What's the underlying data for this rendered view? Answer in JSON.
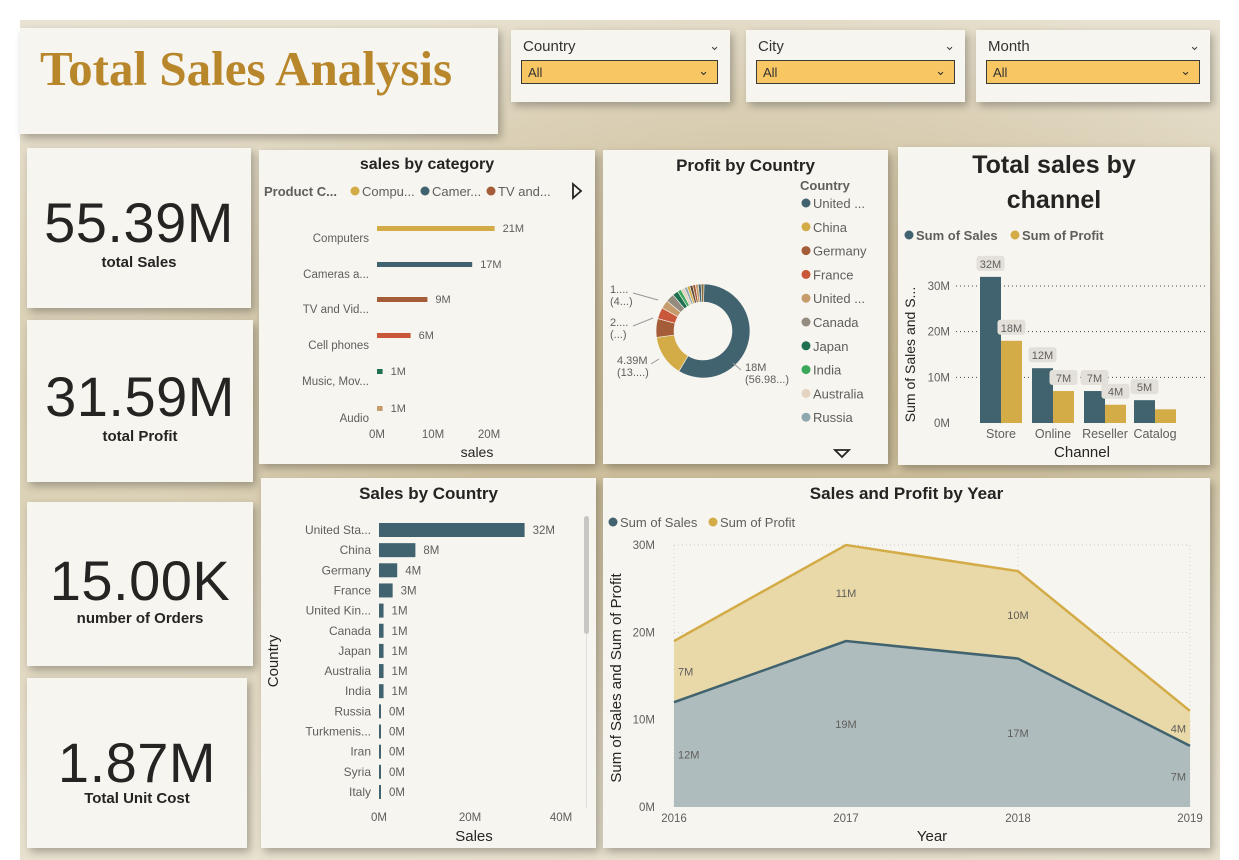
{
  "header": {
    "title": "Total Sales Analysis"
  },
  "slicers": [
    {
      "label": "Country",
      "value": "All"
    },
    {
      "label": "City",
      "value": "All"
    },
    {
      "label": "Month",
      "value": "All"
    }
  ],
  "kpis": [
    {
      "value": "55.39M",
      "caption": "total Sales"
    },
    {
      "value": "31.59M",
      "caption": "total Profit"
    },
    {
      "value": "15.00K",
      "caption": "number of Orders"
    },
    {
      "value": "1.87M",
      "caption": "Total Unit Cost"
    }
  ],
  "colors": {
    "teal": "#41636f",
    "gold": "#d3ab47",
    "brown": "#a55c39",
    "rust": "#c9573a",
    "tan": "#c69c6d",
    "green": "#1f6f51",
    "accent_title": "#b8862b",
    "slicer_fill": "#f8c662"
  },
  "icons": {
    "expand": "play-right-icon",
    "scroll_down": "triangle-down-icon",
    "dropdown": "chevron-down-icon"
  },
  "chart_data": [
    {
      "id": "category",
      "type": "bar",
      "title": "sales by category",
      "legend_title": "Product C...",
      "legend": [
        {
          "name": "Compu...",
          "color": "#d3ab47"
        },
        {
          "name": "Camer...",
          "color": "#41636f"
        },
        {
          "name": "TV and...",
          "color": "#a55c39"
        }
      ],
      "categories": [
        "Computers",
        "Cameras a...",
        "TV and Vid...",
        "Cell phones",
        "Music, Mov...",
        "Audio"
      ],
      "values": [
        21,
        17,
        9,
        6,
        1,
        1
      ],
      "labels": [
        "21M",
        "17M",
        "9M",
        "6M",
        "1M",
        "1M"
      ],
      "colors": [
        "#d3ab47",
        "#41636f",
        "#a55c39",
        "#c9573a",
        "#1f6f51",
        "#c69c6d"
      ],
      "xlabel": "sales",
      "xticks": [
        "0M",
        "10M",
        "20M"
      ],
      "xlim": [
        0,
        25
      ]
    },
    {
      "id": "country_pie",
      "type": "pie",
      "title": "Profit by Country",
      "legend_title": "Country",
      "legend": [
        {
          "name": "United ...",
          "color": "#41636f"
        },
        {
          "name": "China",
          "color": "#d3ab47"
        },
        {
          "name": "Germany",
          "color": "#a55c39"
        },
        {
          "name": "France",
          "color": "#c9573a"
        },
        {
          "name": "United ...",
          "color": "#c69c6d"
        },
        {
          "name": "Canada",
          "color": "#948c7f"
        },
        {
          "name": "Japan",
          "color": "#1f6f51"
        },
        {
          "name": "India",
          "color": "#3aa85a"
        },
        {
          "name": "Australia",
          "color": "#e4d3c1"
        },
        {
          "name": "Russia",
          "color": "#8fa8b0"
        }
      ],
      "slices": [
        {
          "value": 18,
          "color": "#41636f",
          "label": "18M",
          "sublabel": "(56.98...)"
        },
        {
          "value": 4.39,
          "color": "#d3ab47",
          "label": "4.39M",
          "sublabel": "(13....)"
        },
        {
          "value": 2.0,
          "color": "#a55c39",
          "label": "2....",
          "sublabel": "(...)"
        },
        {
          "value": 1.2,
          "color": "#c9573a",
          "label": "1....",
          "sublabel": "(4...)"
        },
        {
          "value": 0.9,
          "color": "#c69c6d"
        },
        {
          "value": 0.9,
          "color": "#948c7f"
        },
        {
          "value": 0.6,
          "color": "#1f6f51"
        },
        {
          "value": 0.4,
          "color": "#3aa85a"
        },
        {
          "value": 0.4,
          "color": "#e4d3c1"
        },
        {
          "value": 0.3,
          "color": "#8fa8b0"
        },
        {
          "value": 0.3,
          "color": "#d3ab47"
        },
        {
          "value": 0.3,
          "color": "#5a4632"
        },
        {
          "value": 0.3,
          "color": "#a55c39"
        },
        {
          "value": 0.3,
          "color": "#c69c6d"
        },
        {
          "value": 0.3,
          "color": "#41636f"
        },
        {
          "value": 0.3,
          "color": "#8a6d3b"
        }
      ]
    },
    {
      "id": "channel",
      "type": "bar",
      "title": "Total sales by channel",
      "title_lines": [
        "Total sales by",
        "channel"
      ],
      "categories": [
        "Store",
        "Online",
        "Reseller",
        "Catalog"
      ],
      "series": [
        {
          "name": "Sum of Sales",
          "color": "#41636f",
          "values": [
            32,
            12,
            7,
            5
          ],
          "labels": [
            "32M",
            "12M",
            "7M",
            "5M"
          ]
        },
        {
          "name": "Sum of Profit",
          "color": "#d3ab47",
          "values": [
            18,
            7,
            4,
            3
          ],
          "labels": [
            "18M",
            "7M",
            "4M",
            ""
          ]
        }
      ],
      "xlabel": "Channel",
      "ylabel": "Sum of Sales and S...",
      "yticks": [
        "0M",
        "10M",
        "20M",
        "30M"
      ],
      "ylim": [
        0,
        35
      ]
    },
    {
      "id": "sales_country",
      "type": "bar",
      "title": "Sales by Country",
      "categories": [
        "United Sta...",
        "China",
        "Germany",
        "France",
        "United Kin...",
        "Canada",
        "Japan",
        "Australia",
        "India",
        "Russia",
        "Turkmenis...",
        "Iran",
        "Syria",
        "Italy"
      ],
      "values": [
        32,
        8,
        4,
        3,
        1,
        1,
        1,
        1,
        1,
        0.1,
        0.1,
        0.1,
        0.1,
        0.1
      ],
      "labels": [
        "32M",
        "8M",
        "4M",
        "3M",
        "1M",
        "1M",
        "1M",
        "1M",
        "1M",
        "0M",
        "0M",
        "0M",
        "0M",
        "0M"
      ],
      "xlabel": "Sales",
      "ylabel": "Country",
      "xticks": [
        "0M",
        "20M",
        "40M"
      ],
      "xlim": [
        0,
        45
      ]
    },
    {
      "id": "year",
      "type": "area",
      "title": "Sales and Profit by Year",
      "x": [
        "2016",
        "2017",
        "2018",
        "2019"
      ],
      "series": [
        {
          "name": "Sum of Sales",
          "color": "#41636f",
          "values": [
            12,
            19,
            17,
            7
          ],
          "labels": [
            "12M",
            "19M",
            "17M",
            "7M"
          ]
        },
        {
          "name": "Sum of Profit",
          "color": "#d3ab47",
          "values": [
            7,
            11,
            10,
            4
          ],
          "labels": [
            "7M",
            "11M",
            "10M",
            "4M"
          ]
        }
      ],
      "xlabel": "Year",
      "ylabel": "Sum of Sales and Sum of Profit",
      "yticks": [
        "0M",
        "10M",
        "20M",
        "30M"
      ],
      "ylim": [
        0,
        30
      ],
      "stacked": true
    }
  ]
}
